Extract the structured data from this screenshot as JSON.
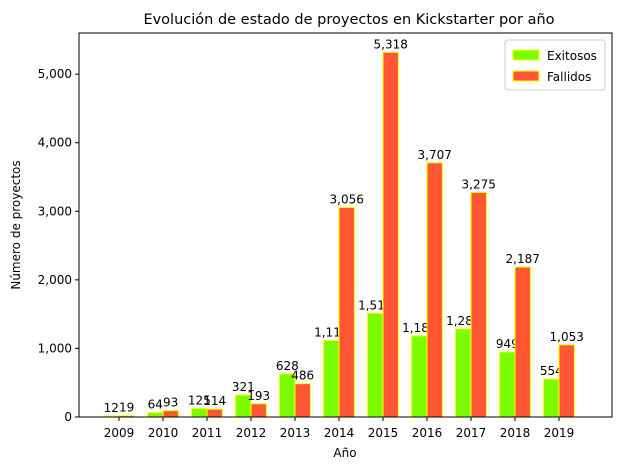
{
  "chart_data": {
    "type": "bar",
    "title": "Evolución de estado de proyectos en Kickstarter por año",
    "xlabel": "Año",
    "ylabel": "Número de proyectos",
    "categories": [
      "2009",
      "2010",
      "2011",
      "2012",
      "2013",
      "2014",
      "2015",
      "2016",
      "2017",
      "2018",
      "2019"
    ],
    "series": [
      {
        "name": "Exitosos",
        "color": "#7cfc00",
        "edge": "#ffff00",
        "values": [
          12,
          64,
          125,
          321,
          628,
          1117,
          1513,
          1182,
          1285,
          949,
          554
        ]
      },
      {
        "name": "Fallidos",
        "color": "#ff5733",
        "edge": "#ffff00",
        "values": [
          19,
          93,
          114,
          193,
          486,
          3056,
          5318,
          3707,
          3275,
          2187,
          1053
        ]
      }
    ],
    "ylim": [
      0,
      5600
    ],
    "yticks": [
      0,
      1000,
      2000,
      3000,
      4000,
      5000
    ],
    "ytick_labels": [
      "0",
      "1,000",
      "2,000",
      "3,000",
      "4,000",
      "5,000"
    ],
    "legend_position": "top-right",
    "grid": false
  }
}
